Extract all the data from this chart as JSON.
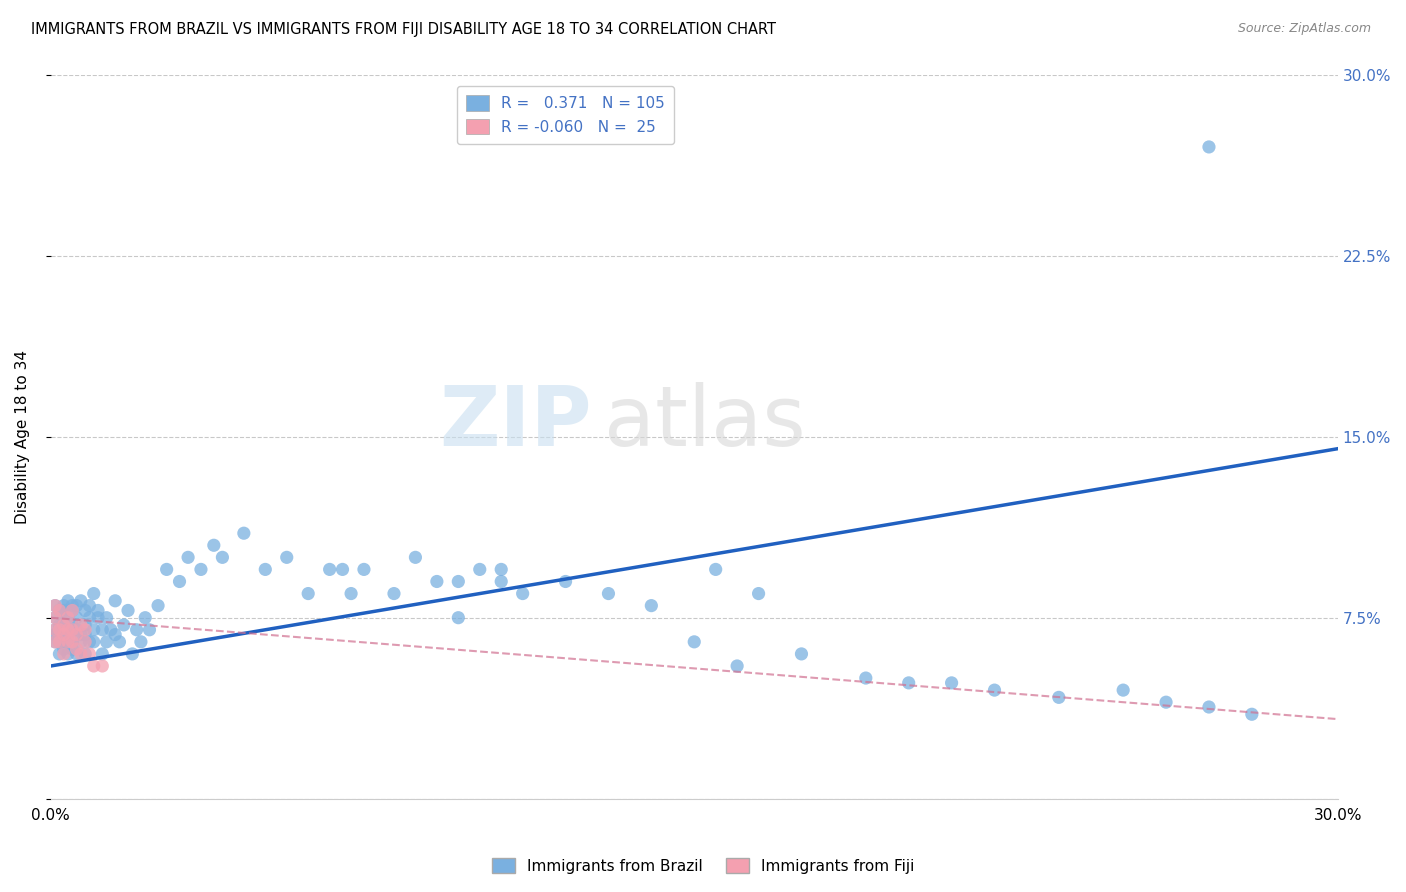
{
  "title": "IMMIGRANTS FROM BRAZIL VS IMMIGRANTS FROM FIJI DISABILITY AGE 18 TO 34 CORRELATION CHART",
  "source": "Source: ZipAtlas.com",
  "ylabel": "Disability Age 18 to 34",
  "xlim": [
    0.0,
    0.3
  ],
  "ylim": [
    0.0,
    0.3
  ],
  "brazil_color": "#7ab0e0",
  "fiji_color": "#f4a0b0",
  "brazil_line_color": "#2060c0",
  "fiji_line_color": "#d07090",
  "brazil_R": 0.371,
  "brazil_N": 105,
  "fiji_R": -0.06,
  "fiji_N": 25,
  "watermark_zip": "ZIP",
  "watermark_atlas": "atlas",
  "legend_brazil": "Immigrants from Brazil",
  "legend_fiji": "Immigrants from Fiji",
  "brazil_line_x0": 0.0,
  "brazil_line_y0": 0.055,
  "brazil_line_x1": 0.3,
  "brazil_line_y1": 0.145,
  "fiji_line_x0": 0.0,
  "fiji_line_y0": 0.075,
  "fiji_line_x1": 0.3,
  "fiji_line_y1": 0.033,
  "brazil_scatter_x": [
    0.001,
    0.001,
    0.001,
    0.001,
    0.001,
    0.002,
    0.002,
    0.002,
    0.002,
    0.002,
    0.002,
    0.003,
    0.003,
    0.003,
    0.003,
    0.003,
    0.003,
    0.003,
    0.004,
    0.004,
    0.004,
    0.004,
    0.004,
    0.005,
    0.005,
    0.005,
    0.005,
    0.005,
    0.005,
    0.006,
    0.006,
    0.006,
    0.006,
    0.007,
    0.007,
    0.007,
    0.008,
    0.008,
    0.008,
    0.008,
    0.009,
    0.009,
    0.009,
    0.01,
    0.01,
    0.01,
    0.011,
    0.011,
    0.012,
    0.012,
    0.013,
    0.013,
    0.014,
    0.015,
    0.015,
    0.016,
    0.017,
    0.018,
    0.019,
    0.02,
    0.021,
    0.022,
    0.023,
    0.025,
    0.027,
    0.03,
    0.032,
    0.035,
    0.038,
    0.04,
    0.045,
    0.05,
    0.055,
    0.06,
    0.065,
    0.07,
    0.08,
    0.09,
    0.095,
    0.1,
    0.105,
    0.11,
    0.12,
    0.13,
    0.14,
    0.15,
    0.16,
    0.175,
    0.19,
    0.2,
    0.21,
    0.22,
    0.235,
    0.25,
    0.26,
    0.27,
    0.28,
    0.155,
    0.165,
    0.068,
    0.073,
    0.085,
    0.095,
    0.105,
    0.27
  ],
  "brazil_scatter_y": [
    0.065,
    0.07,
    0.075,
    0.068,
    0.08,
    0.06,
    0.072,
    0.078,
    0.065,
    0.07,
    0.068,
    0.075,
    0.062,
    0.07,
    0.08,
    0.065,
    0.072,
    0.078,
    0.06,
    0.068,
    0.075,
    0.082,
    0.065,
    0.07,
    0.08,
    0.062,
    0.072,
    0.078,
    0.065,
    0.07,
    0.08,
    0.06,
    0.075,
    0.068,
    0.082,
    0.065,
    0.072,
    0.078,
    0.06,
    0.068,
    0.075,
    0.065,
    0.08,
    0.07,
    0.085,
    0.065,
    0.075,
    0.078,
    0.06,
    0.07,
    0.065,
    0.075,
    0.07,
    0.068,
    0.082,
    0.065,
    0.072,
    0.078,
    0.06,
    0.07,
    0.065,
    0.075,
    0.07,
    0.08,
    0.095,
    0.09,
    0.1,
    0.095,
    0.105,
    0.1,
    0.11,
    0.095,
    0.1,
    0.085,
    0.095,
    0.085,
    0.085,
    0.09,
    0.075,
    0.095,
    0.09,
    0.085,
    0.09,
    0.085,
    0.08,
    0.065,
    0.055,
    0.06,
    0.05,
    0.048,
    0.048,
    0.045,
    0.042,
    0.045,
    0.04,
    0.038,
    0.035,
    0.095,
    0.085,
    0.095,
    0.095,
    0.1,
    0.09,
    0.095,
    0.27
  ],
  "fiji_scatter_x": [
    0.001,
    0.001,
    0.001,
    0.001,
    0.002,
    0.002,
    0.002,
    0.003,
    0.003,
    0.003,
    0.004,
    0.004,
    0.004,
    0.005,
    0.005,
    0.005,
    0.006,
    0.006,
    0.007,
    0.007,
    0.008,
    0.008,
    0.009,
    0.01,
    0.012
  ],
  "fiji_scatter_y": [
    0.065,
    0.07,
    0.075,
    0.08,
    0.065,
    0.07,
    0.078,
    0.068,
    0.072,
    0.06,
    0.07,
    0.065,
    0.075,
    0.065,
    0.07,
    0.078,
    0.062,
    0.068,
    0.072,
    0.06,
    0.065,
    0.07,
    0.06,
    0.055,
    0.055
  ]
}
